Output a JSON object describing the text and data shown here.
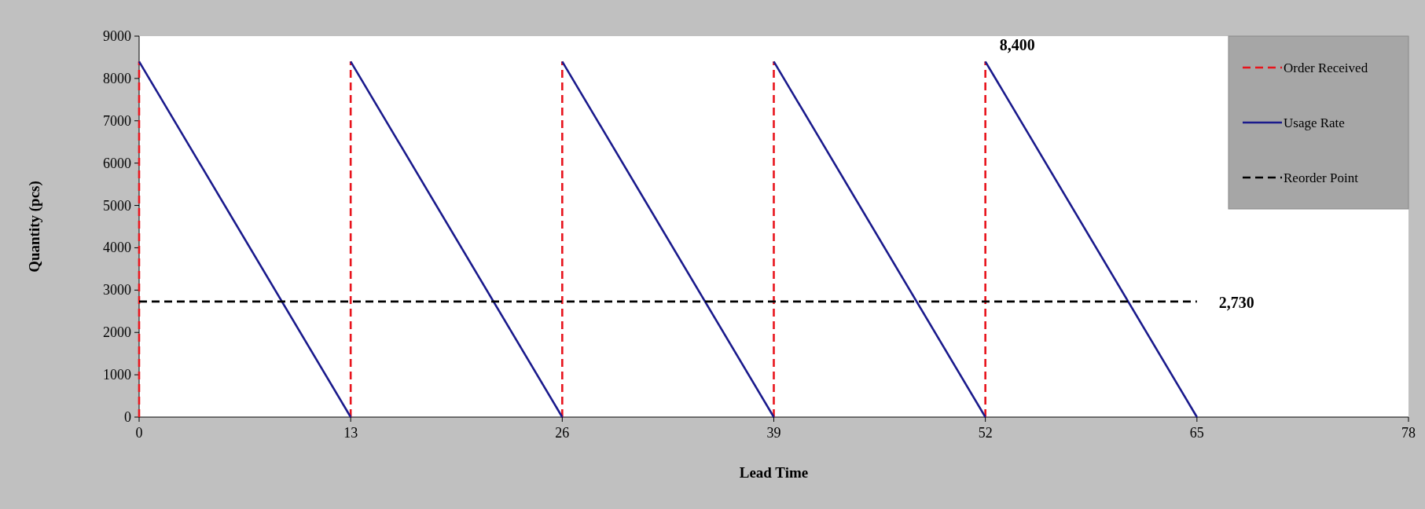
{
  "chart_data": {
    "type": "line",
    "xlabel": "Lead Time",
    "ylabel": "Quantity (pcs)",
    "xlim": [
      0,
      78
    ],
    "xticks": [
      0,
      13,
      26,
      39,
      52,
      65,
      78
    ],
    "ylim": [
      0,
      9000
    ],
    "yticks": [
      0,
      1000,
      2000,
      3000,
      4000,
      5000,
      6000,
      7000,
      8000,
      9000
    ],
    "grid": false,
    "legend": "top right",
    "series": [
      {
        "name": "Order Received",
        "color": "#e8141c",
        "line_style": "dashed",
        "x": [
          0,
          0,
          null,
          13,
          13,
          null,
          26,
          26,
          null,
          39,
          39,
          null,
          52,
          52
        ],
        "values": [
          0,
          8400,
          null,
          0,
          8400,
          null,
          0,
          8400,
          null,
          0,
          8400,
          null,
          0,
          8400
        ]
      },
      {
        "name": "Usage Rate",
        "color": "#1a1a8c",
        "line_style": "solid",
        "x": [
          0,
          13,
          null,
          13,
          26,
          null,
          26,
          39,
          null,
          39,
          52,
          null,
          52,
          65
        ],
        "values": [
          8400,
          0,
          null,
          8400,
          0,
          null,
          8400,
          0,
          null,
          8400,
          0,
          null,
          8400,
          0
        ]
      },
      {
        "name": "Reorder Point",
        "color": "#000000",
        "line_style": "dashed",
        "x": [
          0,
          65
        ],
        "values": [
          2730,
          2730
        ]
      }
    ],
    "annotations": [
      {
        "text": "8,400",
        "x": 52,
        "y": 8400
      },
      {
        "text": "2,730",
        "x": 65,
        "y": 2730
      }
    ]
  }
}
